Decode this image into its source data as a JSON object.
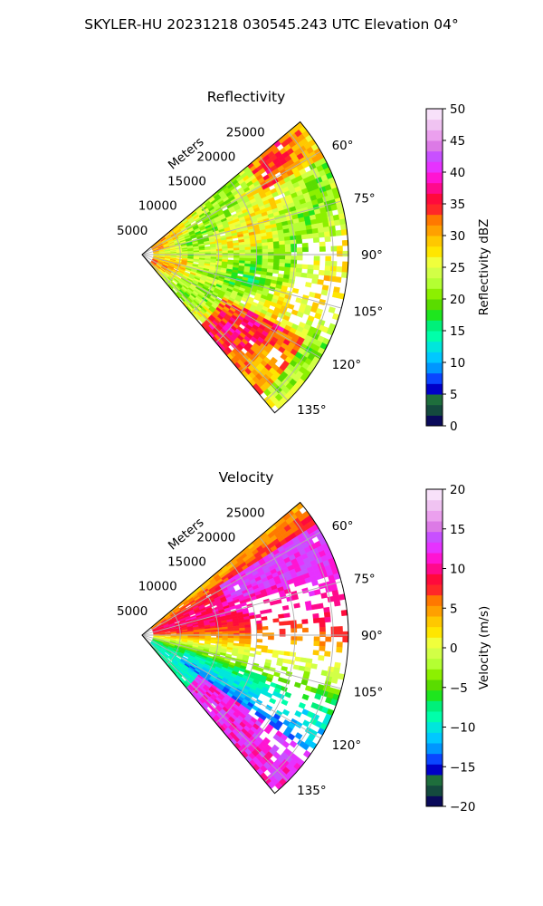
{
  "suptitle": "SKYLER-HU  20231218  030545.243 UTC Elevation 04°",
  "chart_data": [
    {
      "type": "heatmap",
      "title": "Reflectivity",
      "radial_axis_label": "Meters",
      "radial_ticks": [
        "5000",
        "10000",
        "15000",
        "20000",
        "25000"
      ],
      "radial_tick_values": [
        5000,
        10000,
        15000,
        20000,
        25000
      ],
      "radial_max": 27000,
      "azimuth_ticks": [
        "60°",
        "75°",
        "90°",
        "105°",
        "120°",
        "135°"
      ],
      "azimuth_tick_values": [
        60,
        75,
        90,
        105,
        120,
        135
      ],
      "azimuth_range": [
        50,
        140
      ],
      "grid": true,
      "colorbar": {
        "label": "Reflectivity dBZ",
        "min": 0,
        "max": 50,
        "ticks": [
          0,
          5,
          10,
          15,
          20,
          25,
          30,
          35,
          40,
          45,
          50
        ],
        "tick_labels": [
          "0",
          "5",
          "10",
          "15",
          "20",
          "25",
          "30",
          "35",
          "40",
          "45",
          "50"
        ],
        "colormap": [
          "#0a0a5a",
          "#144a3e",
          "#1e6e3c",
          "#0000c8",
          "#0a46ff",
          "#0096ff",
          "#00c8ff",
          "#00e6dc",
          "#00ffaa",
          "#00f07a",
          "#1ee61e",
          "#5adc00",
          "#8cf000",
          "#b4ff32",
          "#d2ff46",
          "#f0ff3c",
          "#ffe600",
          "#ffc800",
          "#ffa000",
          "#ff7800",
          "#ff2828",
          "#ff0a3c",
          "#ff0a8c",
          "#ff14d2",
          "#e632ff",
          "#c850ff",
          "#dc7ae6",
          "#eba0ee",
          "#f0c3f2",
          "#f8e1fa"
        ]
      }
    },
    {
      "type": "heatmap",
      "title": "Velocity",
      "radial_axis_label": "Meters",
      "radial_ticks": [
        "5000",
        "10000",
        "15000",
        "20000",
        "25000"
      ],
      "radial_tick_values": [
        5000,
        10000,
        15000,
        20000,
        25000
      ],
      "radial_max": 27000,
      "azimuth_ticks": [
        "60°",
        "75°",
        "90°",
        "105°",
        "120°",
        "135°"
      ],
      "azimuth_tick_values": [
        60,
        75,
        90,
        105,
        120,
        135
      ],
      "azimuth_range": [
        50,
        140
      ],
      "grid": true,
      "colorbar": {
        "label": "Velocity (m/s)",
        "min": -20,
        "max": 20,
        "ticks": [
          -20,
          -15,
          -10,
          -5,
          0,
          5,
          10,
          15,
          20
        ],
        "tick_labels": [
          "−20",
          "−15",
          "−10",
          "−5",
          "0",
          "5",
          "10",
          "15",
          "20"
        ],
        "colormap": [
          "#0a0a5a",
          "#144a3e",
          "#1e6e3c",
          "#0000c8",
          "#0a46ff",
          "#0096ff",
          "#00c8ff",
          "#00e6dc",
          "#00ffaa",
          "#00f07a",
          "#1ee61e",
          "#5adc00",
          "#8cf000",
          "#b4ff32",
          "#d2ff46",
          "#f0ff3c",
          "#ffe600",
          "#ffc800",
          "#ffa000",
          "#ff7800",
          "#ff2828",
          "#ff0a3c",
          "#ff0a8c",
          "#ff14d2",
          "#e632ff",
          "#c850ff",
          "#dc7ae6",
          "#eba0ee",
          "#f0c3f2",
          "#f8e1fa"
        ]
      }
    }
  ]
}
